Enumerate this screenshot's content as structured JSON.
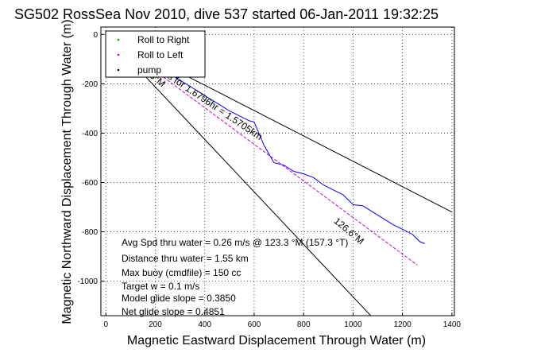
{
  "chart_data": {
    "type": "line",
    "title": "SG502 RossSea Nov 2010, dive 537 started 06-Jan-2011 19:32:25",
    "xlabel": "Magnetic Eastward Displacement Through Water (m)",
    "ylabel": "Magnetic Northward Displacement Through Water (m)",
    "xlim": [
      -20,
      1410
    ],
    "ylim": [
      -1140,
      30
    ],
    "xticks": [
      0,
      200,
      400,
      600,
      800,
      1000,
      1200,
      1400
    ],
    "yticks": [
      0,
      -200,
      -400,
      -600,
      -800,
      -1000
    ],
    "grid": true,
    "legend_position": "top-left",
    "legend": [
      {
        "label": "Roll to Right",
        "color": "#00aa00",
        "marker": "dot"
      },
      {
        "label": "Roll to Left",
        "color": "#cc00cc",
        "marker": "dot"
      },
      {
        "label": "pump",
        "color": "#000000",
        "marker": "dot"
      }
    ],
    "series": [
      {
        "color": "#0000ff",
        "style": "solid",
        "x": [
          0,
          30,
          60,
          90,
          120,
          150,
          180,
          220,
          260,
          300,
          340,
          380,
          420,
          460,
          500,
          540,
          580,
          600,
          640,
          680,
          720,
          760,
          800,
          840,
          880,
          920,
          960,
          1000,
          1040,
          1080,
          1120,
          1160,
          1200,
          1240,
          1270,
          1290
        ],
        "y": [
          0,
          -5,
          -30,
          -50,
          -70,
          -95,
          -110,
          -135,
          -160,
          -185,
          -210,
          -235,
          -260,
          -285,
          -310,
          -330,
          -350,
          -355,
          -450,
          -520,
          -530,
          -555,
          -565,
          -580,
          -610,
          -630,
          -650,
          -690,
          -695,
          -720,
          -745,
          -770,
          -790,
          -810,
          -840,
          -848
        ]
      },
      {
        "color": "#cc00cc",
        "style": "dashed",
        "x": [
          0,
          1260
        ],
        "y": [
          0,
          -935
        ]
      },
      {
        "color": "#000000",
        "style": "solid",
        "x": [
          0,
          1400
        ],
        "y": [
          0,
          -720
        ]
      },
      {
        "color": "#000000",
        "style": "solid",
        "x": [
          0,
          1100
        ],
        "y": [
          0,
          -1170
        ]
      }
    ],
    "annotations": [
      {
        "text": "126.6°M",
        "x": 920,
        "y": -760,
        "rotation": 40
      },
      {
        "text": "0.25m/s for 1.6796hr = 1.5705km",
        "x": 150,
        "y": -110,
        "rotation": 34
      },
      {
        "text": "3.6°M",
        "x": 150,
        "y": -150,
        "rotation": 40
      }
    ],
    "stats": [
      "Avg Spd thru water =  0.26 m/s @ 123.3    °M (157.3 °T)",
      "Distance thru water =  1.55 km",
      "Max buoy (cmdfile) = 150 cc",
      "Target w = 0.1 m/s",
      "Model glide slope = 0.3850",
      "Net glide slope = 0.4851"
    ]
  }
}
